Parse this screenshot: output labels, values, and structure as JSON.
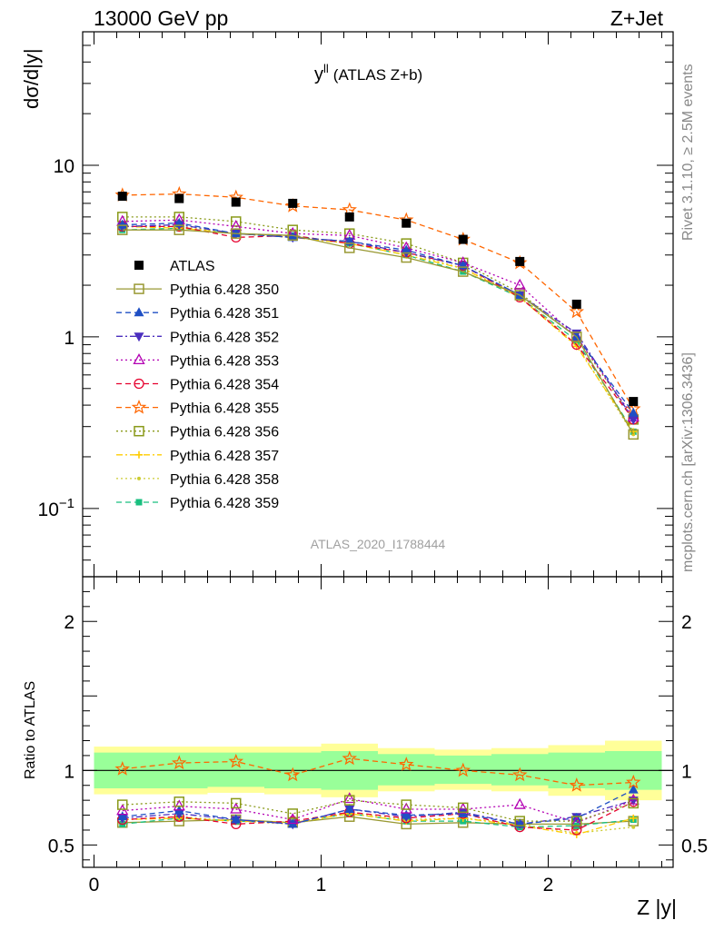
{
  "header": {
    "left": "13000 GeV pp",
    "right": "Z+Jet"
  },
  "side_labels": {
    "rivet": "Rivet 3.1.10, ≥ 2.5M events",
    "mcplots": "mcplots.cern.ch [arXiv:1306.3436]"
  },
  "watermark": "ATLAS_2020_I1788444",
  "colors": {
    "ATLAS": "#000000",
    "350": "#999933",
    "351": "#1f4fc4",
    "352": "#4b2fbf",
    "353": "#b300b3",
    "354": "#e6002e",
    "355": "#ff6600",
    "356": "#8a9a1a",
    "357": "#ffcc00",
    "358": "#cccc33",
    "359": "#19bf7f",
    "band_inner": "#99ff99",
    "band_outer": "#ffff99"
  },
  "chart_data": [
    {
      "type": "scatter",
      "title": "y^ll (ATLAS Z+b)",
      "title_main": "y",
      "title_sup": "ll",
      "title_rest": "(ATLAS Z+b)",
      "xlabel": "Z |y|",
      "ylabel": "dσ/d|y|",
      "xlim": [
        -0.05,
        2.55
      ],
      "ylim": [
        0.04,
        60
      ],
      "yscale": "log",
      "xticks": [
        "0",
        "1",
        "2"
      ],
      "yticks": [
        {
          "value": 10,
          "label": "10"
        },
        {
          "value": 1,
          "label": "1"
        },
        {
          "value": 0.1,
          "label": "10",
          "sup": "−1"
        }
      ],
      "x": [
        0.125,
        0.375,
        0.625,
        0.875,
        1.125,
        1.375,
        1.625,
        1.875,
        2.125,
        2.375
      ],
      "series": [
        {
          "name": "ATLAS",
          "key": "ATLAS",
          "marker": "square",
          "dash": "none",
          "values": [
            6.6,
            6.4,
            6.1,
            6.0,
            5.0,
            4.6,
            3.7,
            2.75,
            1.55,
            0.42
          ]
        },
        {
          "name": "Pythia 6.428 350",
          "key": "350",
          "marker": "open-square",
          "dash": "solid",
          "values": [
            4.2,
            4.2,
            4.0,
            3.9,
            3.3,
            2.9,
            2.4,
            1.75,
            1.0,
            0.27
          ]
        },
        {
          "name": "Pythia 6.428 351",
          "key": "351",
          "marker": "triangle",
          "dash": "dashed",
          "values": [
            4.5,
            4.6,
            4.0,
            3.8,
            3.6,
            3.2,
            2.6,
            1.75,
            1.0,
            0.36
          ]
        },
        {
          "name": "Pythia 6.428 352",
          "key": "352",
          "marker": "triangle-down",
          "dash": "dashdot",
          "values": [
            4.4,
            4.5,
            4.0,
            3.8,
            3.6,
            3.1,
            2.6,
            1.75,
            1.05,
            0.33
          ]
        },
        {
          "name": "Pythia 6.428 353",
          "key": "353",
          "marker": "open-triangle",
          "dash": "dotted",
          "values": [
            4.7,
            4.8,
            4.4,
            4.0,
            3.9,
            3.3,
            2.7,
            2.0,
            1.0,
            0.34
          ]
        },
        {
          "name": "Pythia 6.428 354",
          "key": "354",
          "marker": "open-circle",
          "dash": "dashed",
          "values": [
            4.4,
            4.4,
            3.8,
            3.9,
            3.5,
            3.1,
            2.6,
            1.7,
            0.9,
            0.33
          ]
        },
        {
          "name": "Pythia 6.428 355",
          "key": "355",
          "marker": "open-star",
          "dash": "dashed",
          "values": [
            6.7,
            6.8,
            6.5,
            5.8,
            5.5,
            4.8,
            3.7,
            2.7,
            1.4,
            0.38
          ]
        },
        {
          "name": "Pythia 6.428 356",
          "key": "356",
          "marker": "open-square",
          "dash": "dotted",
          "values": [
            5.0,
            5.0,
            4.7,
            4.2,
            4.0,
            3.5,
            2.7,
            1.8,
            1.0,
            0.33
          ]
        },
        {
          "name": "Pythia 6.428 357",
          "key": "357",
          "marker": "cross",
          "dash": "dashdot",
          "values": [
            4.4,
            4.3,
            4.0,
            3.8,
            3.5,
            3.0,
            2.5,
            1.7,
            0.88,
            0.28
          ]
        },
        {
          "name": "Pythia 6.428 358",
          "key": "358",
          "marker": "dot",
          "dash": "dotted",
          "values": [
            4.4,
            4.4,
            4.0,
            3.8,
            3.6,
            3.1,
            2.5,
            1.75,
            0.9,
            0.27
          ]
        },
        {
          "name": "Pythia 6.428 359",
          "key": "359",
          "marker": "filled-square",
          "dash": "dashed",
          "values": [
            4.2,
            4.3,
            4.0,
            3.9,
            3.5,
            3.0,
            2.4,
            1.7,
            0.95,
            0.28
          ]
        }
      ],
      "legend": "upper-left"
    },
    {
      "type": "scatter",
      "ylabel": "Ratio to ATLAS",
      "xlim": [
        -0.05,
        2.55
      ],
      "ylim": [
        0.35,
        2.3
      ],
      "yticks": [
        {
          "value": 2,
          "label": "2"
        },
        {
          "value": 1,
          "label": "1"
        },
        {
          "value": 0.5,
          "label": "0.5"
        }
      ],
      "x": [
        0.125,
        0.375,
        0.625,
        0.875,
        1.125,
        1.375,
        1.625,
        1.875,
        2.125,
        2.375
      ],
      "band_inner": [
        [
          0.88,
          1.12
        ],
        [
          0.88,
          1.12
        ],
        [
          0.89,
          1.12
        ],
        [
          0.88,
          1.12
        ],
        [
          0.87,
          1.13
        ],
        [
          0.9,
          1.11
        ],
        [
          0.91,
          1.1
        ],
        [
          0.9,
          1.11
        ],
        [
          0.88,
          1.12
        ],
        [
          0.87,
          1.13
        ]
      ],
      "band_outer": [
        [
          0.84,
          1.16
        ],
        [
          0.84,
          1.16
        ],
        [
          0.85,
          1.16
        ],
        [
          0.84,
          1.16
        ],
        [
          0.82,
          1.18
        ],
        [
          0.86,
          1.15
        ],
        [
          0.87,
          1.14
        ],
        [
          0.86,
          1.15
        ],
        [
          0.83,
          1.17
        ],
        [
          0.8,
          1.2
        ]
      ],
      "series": [
        {
          "key": "355",
          "marker": "open-star",
          "dash": "dashed",
          "values": [
            1.01,
            1.05,
            1.06,
            0.97,
            1.08,
            1.04,
            1.0,
            0.97,
            0.9,
            0.92
          ]
        },
        {
          "key": "356",
          "marker": "open-square",
          "dash": "dotted",
          "values": [
            0.77,
            0.79,
            0.78,
            0.71,
            0.8,
            0.77,
            0.75,
            0.66,
            0.66,
            0.78
          ]
        },
        {
          "key": "353",
          "marker": "open-triangle",
          "dash": "dotted",
          "values": [
            0.73,
            0.76,
            0.74,
            0.67,
            0.81,
            0.74,
            0.74,
            0.77,
            0.65,
            0.8
          ]
        },
        {
          "key": "351",
          "marker": "triangle",
          "dash": "dashed",
          "values": [
            0.69,
            0.73,
            0.67,
            0.64,
            0.74,
            0.7,
            0.71,
            0.64,
            0.68,
            0.87
          ]
        },
        {
          "key": "352",
          "marker": "triangle-down",
          "dash": "dashdot",
          "values": [
            0.68,
            0.71,
            0.67,
            0.64,
            0.74,
            0.69,
            0.72,
            0.64,
            0.69,
            0.8
          ]
        },
        {
          "key": "354",
          "marker": "open-circle",
          "dash": "dashed",
          "values": [
            0.67,
            0.69,
            0.64,
            0.66,
            0.72,
            0.68,
            0.71,
            0.62,
            0.6,
            0.79
          ]
        },
        {
          "key": "357",
          "marker": "cross",
          "dash": "dashdot",
          "values": [
            0.67,
            0.68,
            0.66,
            0.65,
            0.71,
            0.66,
            0.68,
            0.63,
            0.57,
            0.68
          ]
        },
        {
          "key": "358",
          "marker": "dot",
          "dash": "dotted",
          "values": [
            0.67,
            0.69,
            0.66,
            0.64,
            0.72,
            0.67,
            0.68,
            0.64,
            0.58,
            0.62
          ]
        },
        {
          "key": "359",
          "marker": "filled-square",
          "dash": "dashed",
          "values": [
            0.64,
            0.68,
            0.66,
            0.65,
            0.71,
            0.66,
            0.66,
            0.62,
            0.63,
            0.67
          ]
        },
        {
          "key": "350",
          "marker": "open-square",
          "dash": "solid",
          "values": [
            0.65,
            0.66,
            0.67,
            0.65,
            0.69,
            0.64,
            0.65,
            0.64,
            0.64,
            0.66
          ]
        }
      ]
    }
  ]
}
